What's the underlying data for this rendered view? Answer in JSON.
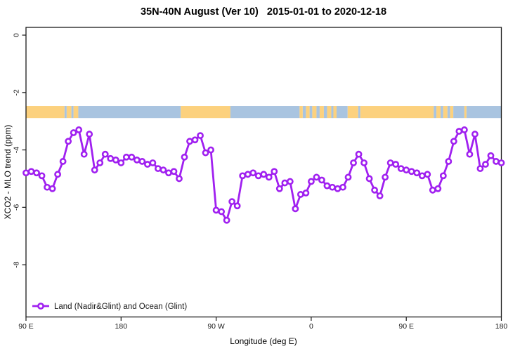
{
  "title": "35N-40N August (Ver 10)   2015-01-01 to 2020-12-18",
  "legend": {
    "label": "Land (Nadir&Glint) and Ocean (Glint)"
  },
  "colors": {
    "series": "#A020F0",
    "marker_fill": "#ffffff",
    "land_band": "#FCD17E",
    "ocean_band": "#A9C4E0",
    "axis": "#1a1a1a",
    "background": "#ffffff"
  },
  "chart_data": {
    "type": "line",
    "title": "35N-40N August (Ver 10)   2015-01-01 to 2020-12-18",
    "xlabel": "Longitude (deg E)",
    "ylabel": "XCO2 - MLO trend (ppm)",
    "legend_entries": [
      "Land (Nadir&Glint) and Ocean (Glint)"
    ],
    "legend_position": "bottom-left",
    "grid": false,
    "x_axis_span_deg": 450,
    "x_start_label_deg_east": 90,
    "x_step_deg": 5,
    "x_ticks_deg": [
      0,
      90,
      180,
      270,
      360,
      450
    ],
    "x_tick_labels": [
      "90 E",
      "180",
      "90 W",
      "0",
      "90 E",
      "180"
    ],
    "y_ticks": [
      0,
      -2,
      -4,
      -6,
      -8
    ],
    "y_tick_labels": [
      "0",
      "-2",
      "-4",
      "-6",
      "-8"
    ],
    "ylim": [
      -9.82,
      0.27
    ],
    "values": [
      -4.8,
      -4.75,
      -4.8,
      -4.9,
      -5.3,
      -5.35,
      -4.85,
      -4.4,
      -3.7,
      -3.4,
      -3.3,
      -4.15,
      -3.45,
      -4.7,
      -4.45,
      -4.15,
      -4.3,
      -4.35,
      -4.45,
      -4.25,
      -4.25,
      -4.35,
      -4.4,
      -4.5,
      -4.45,
      -4.65,
      -4.7,
      -4.8,
      -4.75,
      -5.0,
      -4.25,
      -3.7,
      -3.65,
      -3.5,
      -4.1,
      -4.0,
      -6.1,
      -6.15,
      -6.45,
      -5.8,
      -5.95,
      -4.9,
      -4.85,
      -4.8,
      -4.9,
      -4.85,
      -4.95,
      -4.75,
      -5.35,
      -5.15,
      -5.1,
      -6.05,
      -5.55,
      -5.5,
      -5.1,
      -4.95,
      -5.05,
      -5.25,
      -5.3,
      -5.35,
      -5.3,
      -4.95,
      -4.45,
      -4.15,
      -4.45,
      -5.0,
      -5.4,
      -5.6,
      -4.95,
      -4.45,
      -4.5,
      -4.65,
      -4.7,
      -4.75,
      -4.8,
      -4.9,
      -4.85,
      -5.4,
      -5.35,
      -4.9,
      -4.4,
      -3.7,
      -3.35,
      -3.3,
      -4.15,
      -3.45,
      -4.65,
      -4.5,
      -4.2,
      -4.4,
      -4.45
    ],
    "land_ocean_band": {
      "y_top_ppm": -2.47,
      "y_bottom_ppm": -2.89,
      "segments": [
        {
          "t": "land",
          "a": 0,
          "b": 36.5
        },
        {
          "t": "ocean",
          "a": 36.5,
          "b": 38.5
        },
        {
          "t": "land",
          "a": 38.5,
          "b": 43
        },
        {
          "t": "ocean",
          "a": 43,
          "b": 45
        },
        {
          "t": "land",
          "a": 45,
          "b": 49.5
        },
        {
          "t": "ocean",
          "a": 49.5,
          "b": 146.5
        },
        {
          "t": "land",
          "a": 146.5,
          "b": 193.5
        },
        {
          "t": "ocean",
          "a": 193.5,
          "b": 259
        },
        {
          "t": "land",
          "a": 259,
          "b": 262
        },
        {
          "t": "ocean",
          "a": 262,
          "b": 265
        },
        {
          "t": "land",
          "a": 265,
          "b": 268.5
        },
        {
          "t": "ocean",
          "a": 268.5,
          "b": 271
        },
        {
          "t": "land",
          "a": 271,
          "b": 275
        },
        {
          "t": "ocean",
          "a": 275,
          "b": 278
        },
        {
          "t": "land",
          "a": 278,
          "b": 282
        },
        {
          "t": "ocean",
          "a": 282,
          "b": 285
        },
        {
          "t": "land",
          "a": 285,
          "b": 289
        },
        {
          "t": "ocean",
          "a": 289,
          "b": 291
        },
        {
          "t": "land",
          "a": 291,
          "b": 294
        },
        {
          "t": "ocean",
          "a": 294,
          "b": 304.5
        },
        {
          "t": "land",
          "a": 304.5,
          "b": 314.5
        },
        {
          "t": "ocean",
          "a": 314.5,
          "b": 316.5
        },
        {
          "t": "land",
          "a": 316.5,
          "b": 386
        },
        {
          "t": "ocean",
          "a": 386,
          "b": 388.5
        },
        {
          "t": "land",
          "a": 388.5,
          "b": 392.5
        },
        {
          "t": "ocean",
          "a": 392.5,
          "b": 395
        },
        {
          "t": "land",
          "a": 395,
          "b": 399
        },
        {
          "t": "ocean",
          "a": 399,
          "b": 401.5
        },
        {
          "t": "land",
          "a": 401.5,
          "b": 404.5
        },
        {
          "t": "ocean",
          "a": 404.5,
          "b": 415
        },
        {
          "t": "land",
          "a": 415,
          "b": 417
        },
        {
          "t": "ocean",
          "a": 417,
          "b": 450
        }
      ]
    }
  }
}
